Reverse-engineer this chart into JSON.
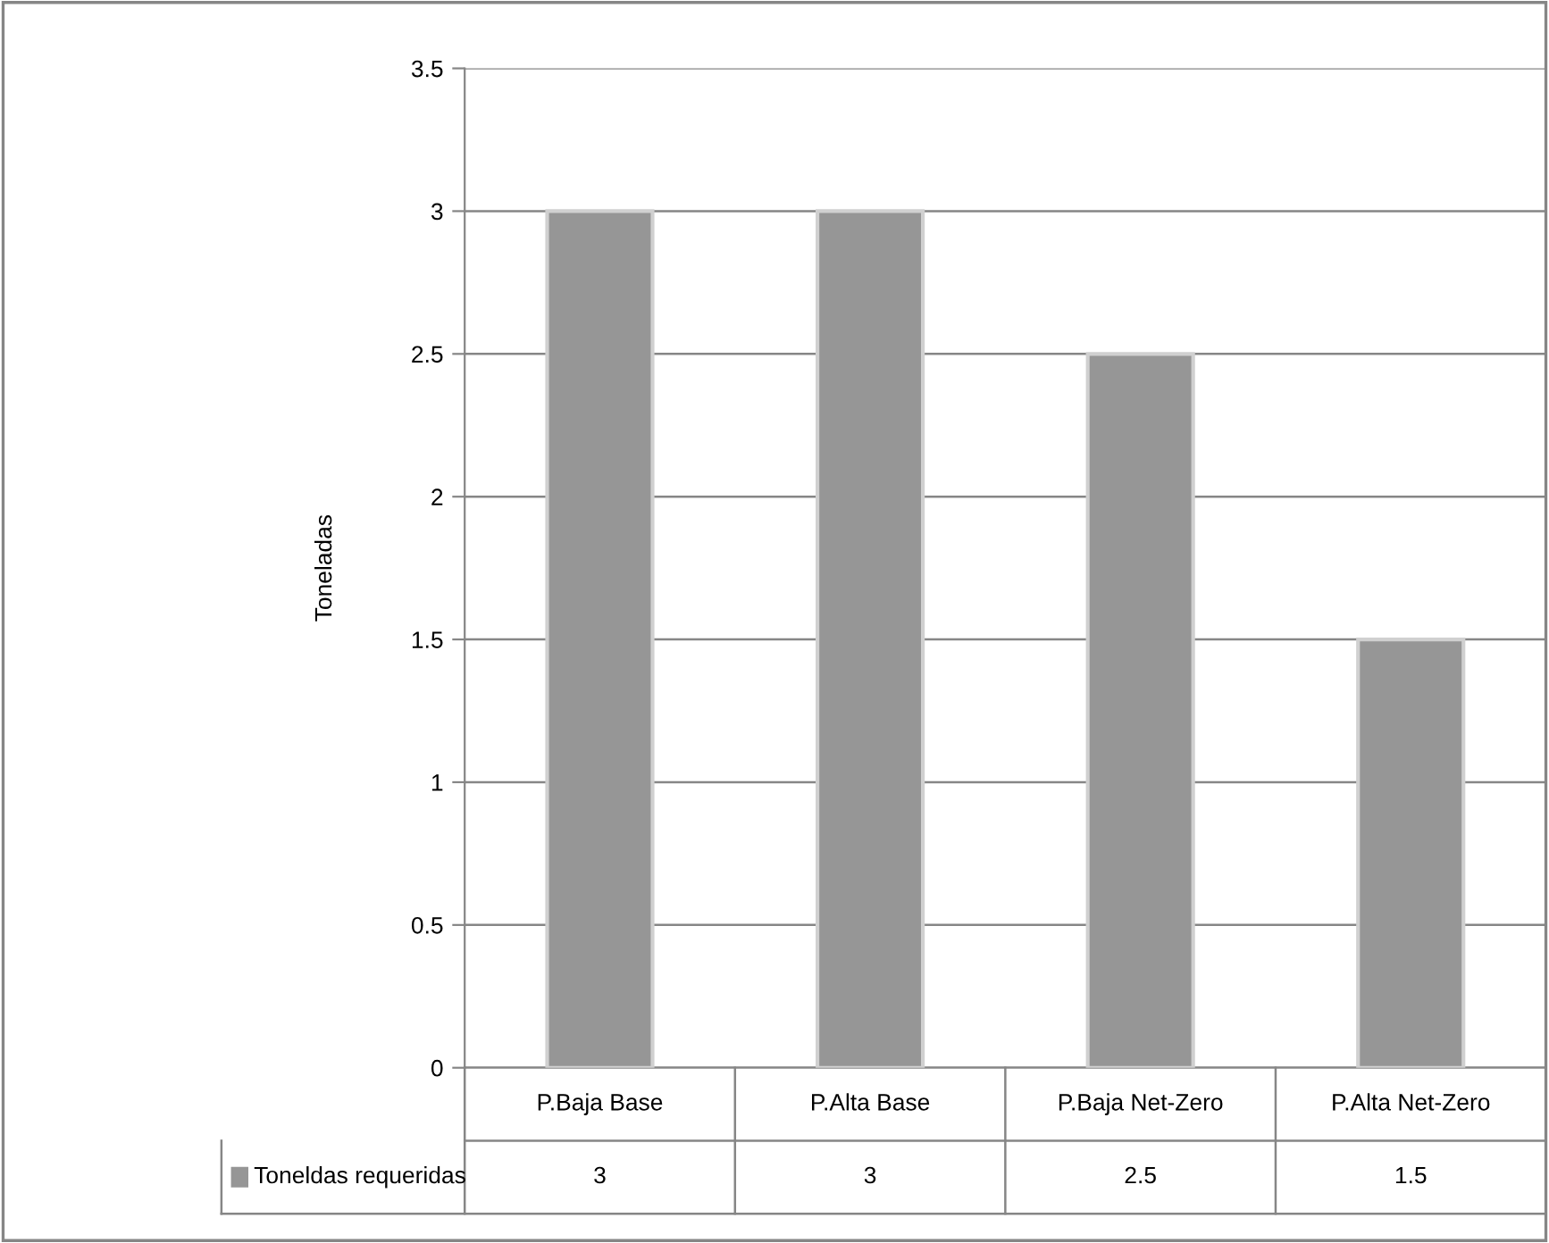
{
  "chart_data": {
    "type": "bar",
    "ylabel": "Toneladas",
    "categories": [
      "P.Baja Base",
      "P.Alta Base",
      "P.Baja Net-Zero",
      "P.Alta Net-Zero"
    ],
    "series": [
      {
        "name": "Toneldas requeridas",
        "color": "#969696",
        "values": [
          3,
          3,
          2.5,
          1.5
        ]
      }
    ],
    "ylim": [
      0,
      3.5
    ],
    "yticks": [
      0,
      0.5,
      1,
      1.5,
      2,
      2.5,
      3,
      3.5
    ],
    "grid": "y",
    "data_labels": true
  }
}
